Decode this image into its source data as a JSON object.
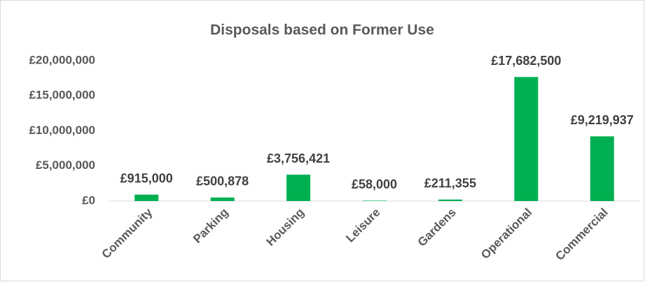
{
  "chart_data": {
    "type": "bar",
    "title": "Disposals based on Former Use",
    "categories": [
      "Community",
      "Parking",
      "Housing",
      "Leisure",
      "Gardens",
      "Operational",
      "Commercial"
    ],
    "values": [
      915000,
      500878,
      3756421,
      58000,
      211355,
      17682500,
      9219937
    ],
    "value_labels": [
      "£915,000",
      "£500,878",
      "£3,756,421",
      "£58,000",
      "£211,355",
      "£17,682,500",
      "£9,219,937"
    ],
    "color": "#00b050",
    "ylim": [
      0,
      20000000
    ],
    "yticks": [
      {
        "value": 0,
        "label": "£0"
      },
      {
        "value": 5000000,
        "label": "£5,000,000"
      },
      {
        "value": 10000000,
        "label": "£10,000,000"
      },
      {
        "value": 15000000,
        "label": "£15,000,000"
      },
      {
        "value": 20000000,
        "label": "£20,000,000"
      }
    ],
    "grid": false
  }
}
